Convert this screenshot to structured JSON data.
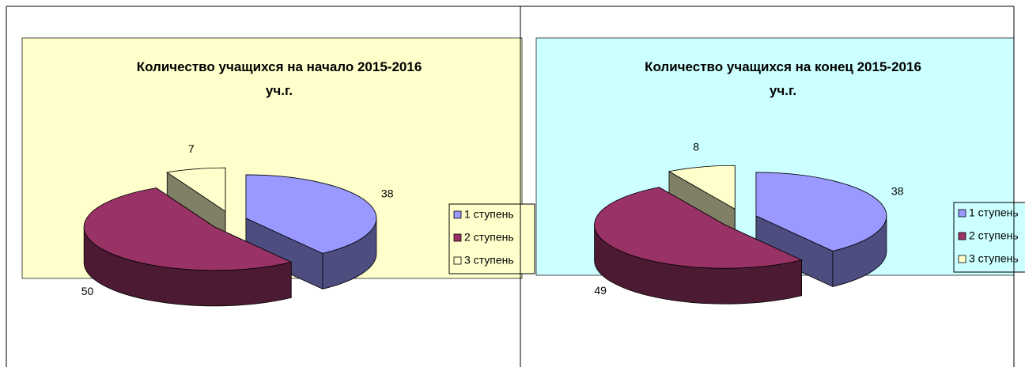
{
  "chart_data": [
    {
      "type": "pie",
      "title": "Количество учащихся  на начало 2015-2016\nуч.г.",
      "categories": [
        "1 ступень",
        "2 ступень",
        "3 ступень"
      ],
      "values": [
        38,
        50,
        7
      ],
      "colors": [
        "#9999ff",
        "#993366",
        "#ffffcc"
      ],
      "background": "#ffffcc",
      "legend": "right",
      "three_d": true
    },
    {
      "type": "pie",
      "title": "Количество учащихся  на конец   2015-2016\nуч.г.",
      "categories": [
        "1 ступень",
        "2 ступень",
        "3 ступень"
      ],
      "values": [
        38,
        49,
        8
      ],
      "colors": [
        "#9999ff",
        "#993366",
        "#ffffcc"
      ],
      "background": "#ccffff",
      "legend": "right",
      "three_d": true
    }
  ]
}
